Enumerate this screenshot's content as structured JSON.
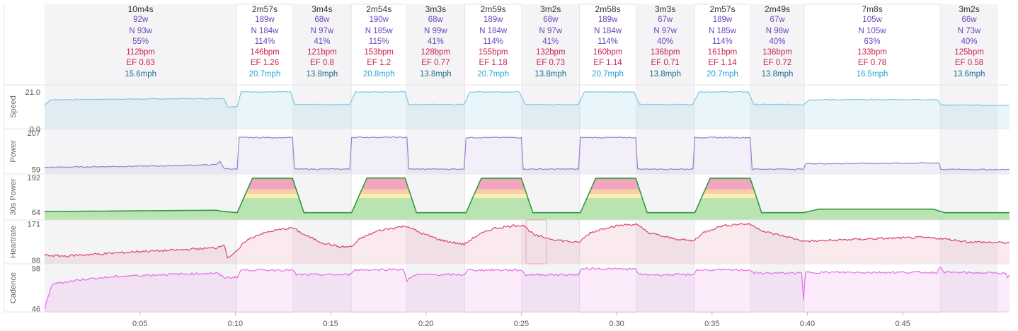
{
  "colors": {
    "speed": "#7ec8e3",
    "power": "#9a7fd1",
    "power30s": "#2e9c3f",
    "heartrate": "#d9466f",
    "cadence": "#e36ee6",
    "zone_red": "#f2a6bd",
    "zone_orange": "#f9cda8",
    "zone_yellow": "#fbeeb0",
    "zone_green": "#b9e3b0",
    "active_bg": "#ffffff",
    "rest_bg": "#f4f4f6"
  },
  "segments": [
    {
      "duration": "10m4s",
      "power": "92w",
      "np": "N 93w",
      "intensity": "55%",
      "hr": "112bpm",
      "ef": "EF 0.83",
      "speed": "15.6mph",
      "active": false
    },
    {
      "duration": "2m57s",
      "power": "189w",
      "np": "N 184w",
      "intensity": "114%",
      "hr": "146bpm",
      "ef": "EF 1.26",
      "speed": "20.7mph",
      "active": true
    },
    {
      "duration": "3m4s",
      "power": "68w",
      "np": "N 97w",
      "intensity": "41%",
      "hr": "121bpm",
      "ef": "EF 0.8",
      "speed": "13.8mph",
      "active": false
    },
    {
      "duration": "2m54s",
      "power": "190w",
      "np": "N 185w",
      "intensity": "115%",
      "hr": "153bpm",
      "ef": "EF 1.2",
      "speed": "20.8mph",
      "active": true
    },
    {
      "duration": "3m3s",
      "power": "68w",
      "np": "N 99w",
      "intensity": "41%",
      "hr": "128bpm",
      "ef": "EF 0.77",
      "speed": "13.8mph",
      "active": false
    },
    {
      "duration": "2m59s",
      "power": "189w",
      "np": "N 184w",
      "intensity": "114%",
      "hr": "155bpm",
      "ef": "EF 1.18",
      "speed": "20.7mph",
      "active": true
    },
    {
      "duration": "3m2s",
      "power": "68w",
      "np": "N 97w",
      "intensity": "41%",
      "hr": "132bpm",
      "ef": "EF 0.73",
      "speed": "13.8mph",
      "active": false
    },
    {
      "duration": "2m58s",
      "power": "189w",
      "np": "N 184w",
      "intensity": "114%",
      "hr": "160bpm",
      "ef": "EF 1.14",
      "speed": "20.7mph",
      "active": true
    },
    {
      "duration": "3m3s",
      "power": "67w",
      "np": "N 97w",
      "intensity": "40%",
      "hr": "136bpm",
      "ef": "EF 0.71",
      "speed": "13.8mph",
      "active": false
    },
    {
      "duration": "2m57s",
      "power": "189w",
      "np": "N 185w",
      "intensity": "114%",
      "hr": "161bpm",
      "ef": "EF 1.14",
      "speed": "20.7mph",
      "active": true
    },
    {
      "duration": "2m49s",
      "power": "67w",
      "np": "N 98w",
      "intensity": "40%",
      "hr": "136bpm",
      "ef": "EF 0.72",
      "speed": "13.8mph",
      "active": false
    },
    {
      "duration": "7m8s",
      "power": "105w",
      "np": "N 105w",
      "intensity": "63%",
      "hr": "133bpm",
      "ef": "EF 0.78",
      "speed": "16.5mph",
      "active": true
    },
    {
      "duration": "3m2s",
      "power": "66w",
      "np": "N 73w",
      "intensity": "40%",
      "hr": "125bpm",
      "ef": "EF 0.58",
      "speed": "13.6mph",
      "active": false
    }
  ],
  "chart_data": {
    "type": "line",
    "x_unit": "minutes",
    "x_range": [
      0,
      50.6
    ],
    "x_ticks": [
      "0:05",
      "0:10",
      "0:15",
      "0:20",
      "0:25",
      "0:30",
      "0:35",
      "0:40",
      "0:45"
    ],
    "x_tick_values": [
      5,
      10,
      15,
      20,
      25,
      30,
      35,
      40,
      45
    ],
    "interval_bounds": [
      0,
      10.07,
      13.02,
      16.08,
      18.98,
      22.03,
      25.02,
      28.05,
      31.02,
      34.07,
      37.02,
      39.83,
      46.97,
      50.0
    ],
    "panels": [
      {
        "label": "Speed",
        "y_ticks": [
          "21.0",
          "0.0"
        ],
        "y_tick_values": [
          21.0,
          0.0
        ],
        "ylim": [
          0,
          25
        ],
        "series": [
          {
            "x": 0,
            "y": 13.5
          },
          {
            "x": 0.3,
            "y": 16.5
          },
          {
            "x": 3,
            "y": 16.8
          },
          {
            "x": 6,
            "y": 17.0
          },
          {
            "x": 9.4,
            "y": 17.3
          },
          {
            "x": 9.6,
            "y": 12.5
          },
          {
            "x": 10.1,
            "y": 12.8
          },
          {
            "x": 10.3,
            "y": 21.0
          },
          {
            "x": 12.9,
            "y": 21.0
          },
          {
            "x": 13.1,
            "y": 13.8
          },
          {
            "x": 16.0,
            "y": 13.8
          },
          {
            "x": 16.3,
            "y": 21.0
          },
          {
            "x": 18.9,
            "y": 21.0
          },
          {
            "x": 19.1,
            "y": 13.8
          },
          {
            "x": 22.0,
            "y": 13.8
          },
          {
            "x": 22.3,
            "y": 21.0
          },
          {
            "x": 24.9,
            "y": 21.0
          },
          {
            "x": 25.2,
            "y": 13.8
          },
          {
            "x": 28.0,
            "y": 13.8
          },
          {
            "x": 28.3,
            "y": 21.0
          },
          {
            "x": 30.9,
            "y": 21.0
          },
          {
            "x": 31.2,
            "y": 13.8
          },
          {
            "x": 34.0,
            "y": 13.8
          },
          {
            "x": 34.3,
            "y": 21.0
          },
          {
            "x": 36.9,
            "y": 21.0
          },
          {
            "x": 37.2,
            "y": 13.8
          },
          {
            "x": 39.8,
            "y": 13.8
          },
          {
            "x": 40.1,
            "y": 16.5
          },
          {
            "x": 46.8,
            "y": 16.6
          },
          {
            "x": 47.0,
            "y": 13.6
          },
          {
            "x": 50.6,
            "y": 13.2
          }
        ]
      },
      {
        "label": "Power",
        "y_ticks": [
          "207",
          "59"
        ],
        "y_tick_values": [
          207,
          59
        ],
        "ylim": [
          40,
          225
        ],
        "series": [
          {
            "x": 0,
            "y": 67
          },
          {
            "x": 3,
            "y": 70
          },
          {
            "x": 6,
            "y": 73
          },
          {
            "x": 9.0,
            "y": 78
          },
          {
            "x": 9.2,
            "y": 93
          },
          {
            "x": 9.4,
            "y": 62
          },
          {
            "x": 10.1,
            "y": 60
          },
          {
            "x": 10.2,
            "y": 189
          },
          {
            "x": 13.0,
            "y": 189
          },
          {
            "x": 13.1,
            "y": 60
          },
          {
            "x": 16.0,
            "y": 60
          },
          {
            "x": 16.1,
            "y": 190
          },
          {
            "x": 19.0,
            "y": 190
          },
          {
            "x": 19.1,
            "y": 60
          },
          {
            "x": 22.0,
            "y": 60
          },
          {
            "x": 22.1,
            "y": 189
          },
          {
            "x": 25.0,
            "y": 189
          },
          {
            "x": 25.1,
            "y": 60
          },
          {
            "x": 28.0,
            "y": 60
          },
          {
            "x": 28.1,
            "y": 189
          },
          {
            "x": 31.0,
            "y": 189
          },
          {
            "x": 31.1,
            "y": 60
          },
          {
            "x": 34.0,
            "y": 60
          },
          {
            "x": 34.1,
            "y": 189
          },
          {
            "x": 37.0,
            "y": 189
          },
          {
            "x": 37.1,
            "y": 60
          },
          {
            "x": 39.8,
            "y": 60
          },
          {
            "x": 39.9,
            "y": 82
          },
          {
            "x": 46.9,
            "y": 85
          },
          {
            "x": 47.0,
            "y": 59
          },
          {
            "x": 50.6,
            "y": 58
          }
        ]
      },
      {
        "label": "30s Power",
        "y_ticks": [
          "192",
          "64"
        ],
        "y_tick_values": [
          192,
          64
        ],
        "ylim": [
          35,
          205
        ],
        "series": [
          {
            "x": 0,
            "y": 66
          },
          {
            "x": 9.0,
            "y": 71
          },
          {
            "x": 9.3,
            "y": 67
          },
          {
            "x": 10.1,
            "y": 62
          },
          {
            "x": 10.9,
            "y": 189
          },
          {
            "x": 13.0,
            "y": 189
          },
          {
            "x": 13.6,
            "y": 62
          },
          {
            "x": 16.1,
            "y": 62
          },
          {
            "x": 16.9,
            "y": 190
          },
          {
            "x": 18.9,
            "y": 190
          },
          {
            "x": 19.5,
            "y": 62
          },
          {
            "x": 22.1,
            "y": 62
          },
          {
            "x": 22.9,
            "y": 189
          },
          {
            "x": 25.0,
            "y": 189
          },
          {
            "x": 25.6,
            "y": 62
          },
          {
            "x": 28.1,
            "y": 62
          },
          {
            "x": 28.9,
            "y": 189
          },
          {
            "x": 31.0,
            "y": 189
          },
          {
            "x": 31.6,
            "y": 62
          },
          {
            "x": 34.1,
            "y": 62
          },
          {
            "x": 34.9,
            "y": 189
          },
          {
            "x": 37.0,
            "y": 189
          },
          {
            "x": 37.6,
            "y": 62
          },
          {
            "x": 39.8,
            "y": 62
          },
          {
            "x": 40.6,
            "y": 75
          },
          {
            "x": 46.6,
            "y": 75
          },
          {
            "x": 47.2,
            "y": 62
          },
          {
            "x": 50.6,
            "y": 62
          }
        ]
      },
      {
        "label": "Heartrate",
        "y_ticks": [
          "171",
          "86"
        ],
        "y_tick_values": [
          171,
          86
        ],
        "ylim": [
          78,
          180
        ],
        "series": [
          {
            "x": 0,
            "y": 98
          },
          {
            "x": 1,
            "y": 96
          },
          {
            "x": 2,
            "y": 99
          },
          {
            "x": 3,
            "y": 101
          },
          {
            "x": 4,
            "y": 104
          },
          {
            "x": 5,
            "y": 107
          },
          {
            "x": 6,
            "y": 108
          },
          {
            "x": 7,
            "y": 110
          },
          {
            "x": 8,
            "y": 113
          },
          {
            "x": 9,
            "y": 115
          },
          {
            "x": 9.4,
            "y": 124
          },
          {
            "x": 9.6,
            "y": 93
          },
          {
            "x": 10.1,
            "y": 107
          },
          {
            "x": 10.5,
            "y": 130
          },
          {
            "x": 11.2,
            "y": 146
          },
          {
            "x": 12,
            "y": 155
          },
          {
            "x": 13,
            "y": 162
          },
          {
            "x": 13.6,
            "y": 146
          },
          {
            "x": 14.5,
            "y": 128
          },
          {
            "x": 15.5,
            "y": 117
          },
          {
            "x": 16.1,
            "y": 118
          },
          {
            "x": 16.6,
            "y": 138
          },
          {
            "x": 17.5,
            "y": 155
          },
          {
            "x": 18.5,
            "y": 163
          },
          {
            "x": 19.0,
            "y": 166
          },
          {
            "x": 19.7,
            "y": 150
          },
          {
            "x": 20.8,
            "y": 133
          },
          {
            "x": 22.0,
            "y": 123
          },
          {
            "x": 22.6,
            "y": 142
          },
          {
            "x": 23.5,
            "y": 160
          },
          {
            "x": 24.6,
            "y": 167
          },
          {
            "x": 25.1,
            "y": 168
          },
          {
            "x": 25.7,
            "y": 144
          },
          {
            "x": 26.8,
            "y": 134
          },
          {
            "x": 28.0,
            "y": 127
          },
          {
            "x": 28.6,
            "y": 150
          },
          {
            "x": 29.5,
            "y": 163
          },
          {
            "x": 30.5,
            "y": 169
          },
          {
            "x": 31.0,
            "y": 170
          },
          {
            "x": 31.7,
            "y": 150
          },
          {
            "x": 32.8,
            "y": 138
          },
          {
            "x": 34.0,
            "y": 131
          },
          {
            "x": 34.6,
            "y": 152
          },
          {
            "x": 35.5,
            "y": 166
          },
          {
            "x": 36.5,
            "y": 171
          },
          {
            "x": 37.0,
            "y": 170
          },
          {
            "x": 37.8,
            "y": 152
          },
          {
            "x": 39.0,
            "y": 140
          },
          {
            "x": 39.8,
            "y": 131
          },
          {
            "x": 40.5,
            "y": 131
          },
          {
            "x": 42,
            "y": 134
          },
          {
            "x": 44,
            "y": 137
          },
          {
            "x": 46,
            "y": 139
          },
          {
            "x": 47.0,
            "y": 137
          },
          {
            "x": 48.5,
            "y": 129
          },
          {
            "x": 50.6,
            "y": 127
          }
        ]
      },
      {
        "label": "Cadence",
        "y_ticks": [
          "98",
          "46"
        ],
        "y_tick_values": [
          98,
          46
        ],
        "ylim": [
          42,
          104
        ],
        "series": [
          {
            "x": 0,
            "y": 46
          },
          {
            "x": 0.4,
            "y": 78
          },
          {
            "x": 2,
            "y": 84
          },
          {
            "x": 4,
            "y": 88
          },
          {
            "x": 6,
            "y": 90
          },
          {
            "x": 9,
            "y": 92
          },
          {
            "x": 9.5,
            "y": 86
          },
          {
            "x": 10.1,
            "y": 87
          },
          {
            "x": 10.3,
            "y": 96
          },
          {
            "x": 13.0,
            "y": 96
          },
          {
            "x": 13.2,
            "y": 90
          },
          {
            "x": 16.0,
            "y": 90
          },
          {
            "x": 16.2,
            "y": 96
          },
          {
            "x": 18.8,
            "y": 97
          },
          {
            "x": 19.0,
            "y": 82
          },
          {
            "x": 19.4,
            "y": 90
          },
          {
            "x": 22.0,
            "y": 90
          },
          {
            "x": 22.2,
            "y": 96
          },
          {
            "x": 25.0,
            "y": 96
          },
          {
            "x": 25.2,
            "y": 90
          },
          {
            "x": 28.0,
            "y": 90
          },
          {
            "x": 28.2,
            "y": 98
          },
          {
            "x": 31.0,
            "y": 97
          },
          {
            "x": 31.2,
            "y": 90
          },
          {
            "x": 34.0,
            "y": 90
          },
          {
            "x": 34.2,
            "y": 96
          },
          {
            "x": 37.0,
            "y": 96
          },
          {
            "x": 37.2,
            "y": 92
          },
          {
            "x": 39.7,
            "y": 92
          },
          {
            "x": 39.8,
            "y": 58
          },
          {
            "x": 39.9,
            "y": 93
          },
          {
            "x": 46.8,
            "y": 93
          },
          {
            "x": 47.0,
            "y": 100
          },
          {
            "x": 47.2,
            "y": 93
          },
          {
            "x": 50.4,
            "y": 92
          },
          {
            "x": 50.5,
            "y": 86
          },
          {
            "x": 50.6,
            "y": 90
          }
        ]
      }
    ]
  }
}
